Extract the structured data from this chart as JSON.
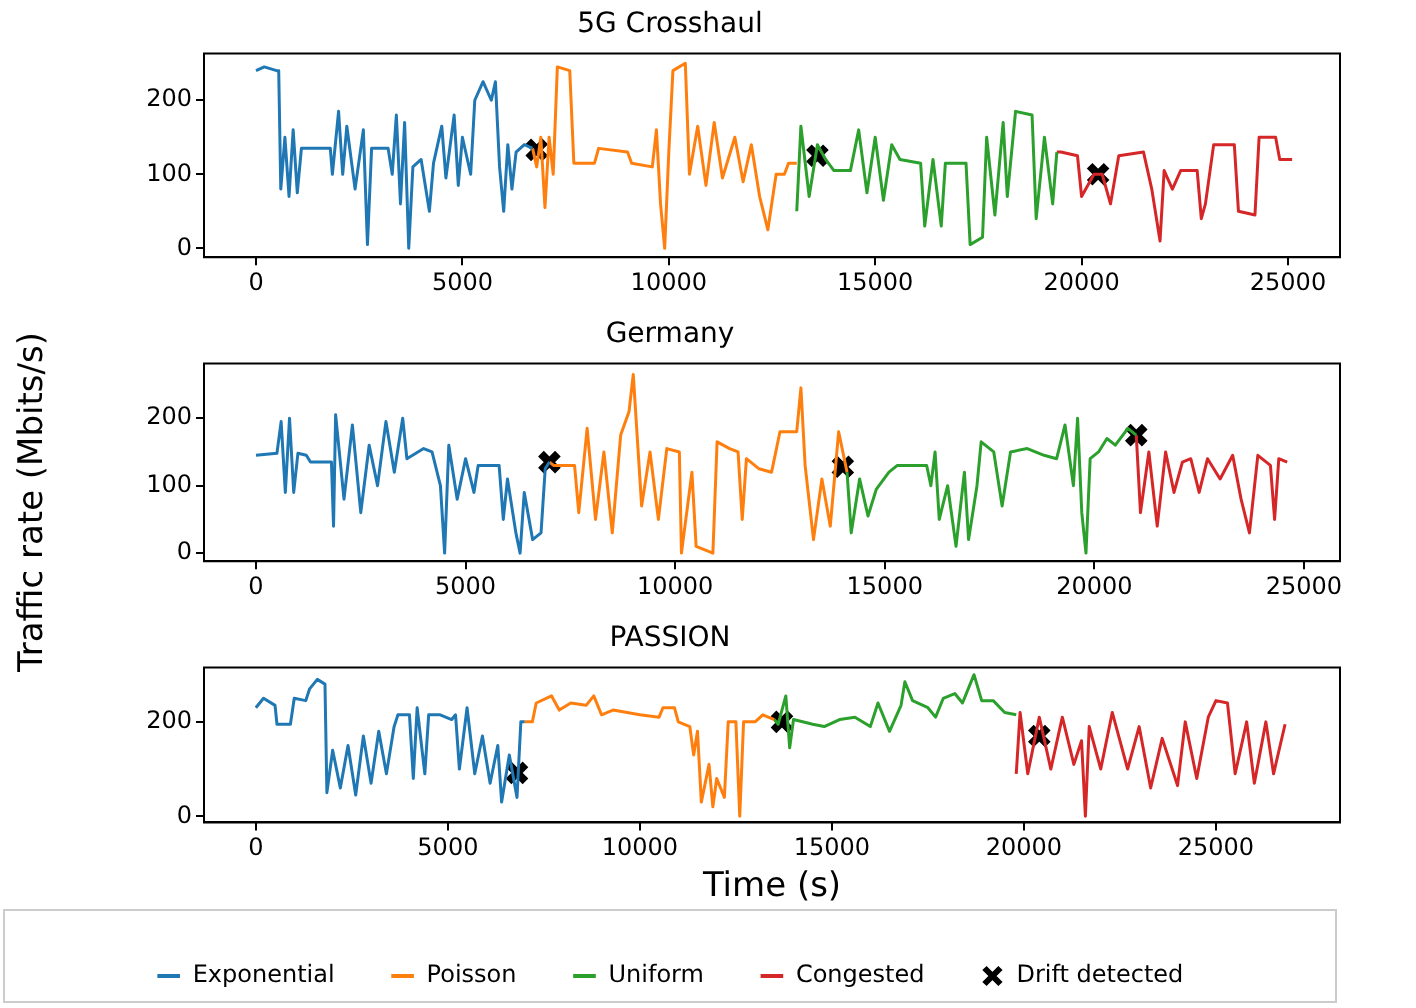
{
  "chart_data": [
    {
      "type": "line",
      "title": "5G Crosshaul",
      "xlim": [
        -1260,
        26260
      ],
      "xticks": [
        0,
        5000,
        10000,
        15000,
        20000,
        25000
      ],
      "ylim": [
        -12,
        263
      ],
      "yticks": [
        0,
        100,
        200
      ],
      "grid": false,
      "legend": false,
      "series": [
        {
          "color": "#1f77b4",
          "x": [
            0,
            200,
            500,
            550,
            600,
            700,
            800,
            900,
            1000,
            1100,
            1800,
            1850,
            2000,
            2100,
            2200,
            2400,
            2600,
            2700,
            2800,
            3200,
            3300,
            3400,
            3500,
            3600,
            3700,
            3800,
            4000,
            4200,
            4300,
            4500,
            4600,
            4800,
            4900,
            5000,
            5200,
            5300,
            5500,
            5700,
            5800,
            5900,
            6000,
            6100,
            6200,
            6300,
            6500,
            6700
          ],
          "values": [
            240,
            245,
            240,
            240,
            80,
            150,
            70,
            160,
            75,
            135,
            135,
            100,
            185,
            100,
            165,
            80,
            160,
            5,
            135,
            135,
            100,
            180,
            60,
            170,
            0,
            110,
            120,
            50,
            115,
            165,
            95,
            180,
            85,
            150,
            100,
            200,
            225,
            200,
            225,
            110,
            50,
            140,
            80,
            130,
            140,
            135
          ]
        },
        {
          "color": "#ff7f0e",
          "x": [
            6700,
            6800,
            6900,
            7000,
            7100,
            7200,
            7300,
            7600,
            7700,
            8200,
            8300,
            9000,
            9100,
            9600,
            9700,
            9800,
            9900,
            10000,
            10100,
            10400,
            10500,
            10700,
            10900,
            11100,
            11300,
            11600,
            11800,
            12000,
            12200,
            12400,
            12600,
            12800,
            12900,
            13100
          ],
          "values": [
            135,
            110,
            150,
            55,
            150,
            100,
            245,
            240,
            115,
            115,
            135,
            130,
            115,
            110,
            160,
            60,
            0,
            130,
            240,
            250,
            100,
            165,
            85,
            170,
            95,
            150,
            90,
            140,
            70,
            25,
            100,
            100,
            115,
            115
          ]
        },
        {
          "color": "#2ca02c",
          "x": [
            13100,
            13200,
            13400,
            13600,
            13800,
            14000,
            14400,
            14600,
            14800,
            15000,
            15200,
            15400,
            15600,
            16100,
            16200,
            16400,
            16600,
            16700,
            17200,
            17300,
            17600,
            17700,
            17900,
            18100,
            18200,
            18400,
            18800,
            18900,
            19100,
            19300,
            19400
          ],
          "values": [
            50,
            165,
            70,
            140,
            120,
            105,
            105,
            160,
            75,
            150,
            65,
            140,
            120,
            115,
            30,
            120,
            30,
            115,
            115,
            5,
            15,
            150,
            45,
            170,
            70,
            185,
            180,
            40,
            150,
            60,
            130
          ]
        },
        {
          "color": "#d62728",
          "x": [
            19400,
            19500,
            19900,
            20000,
            20300,
            20500,
            20700,
            20900,
            21500,
            21700,
            21900,
            22000,
            22200,
            22400,
            22800,
            22900,
            23000,
            23200,
            23700,
            23800,
            24200,
            24300,
            24700,
            24800,
            25100
          ],
          "values": [
            130,
            130,
            125,
            70,
            100,
            100,
            60,
            125,
            130,
            80,
            10,
            105,
            80,
            105,
            105,
            40,
            60,
            140,
            140,
            50,
            45,
            150,
            150,
            120,
            120
          ]
        },
        {
          "type": "scatter",
          "color": "#000000",
          "marker": "cross",
          "x": [
            6800,
            13600,
            20400
          ],
          "values": [
            133,
            125,
            100
          ]
        }
      ]
    },
    {
      "type": "line",
      "title": "Germany",
      "ylabel": "Traffic rate (Mbits/s)",
      "xlim": [
        -1240,
        25860
      ],
      "xticks": [
        0,
        5000,
        10000,
        15000,
        20000,
        25000
      ],
      "ylim": [
        -12,
        281
      ],
      "yticks": [
        0,
        100,
        200
      ],
      "grid": false,
      "legend": false,
      "series": [
        {
          "color": "#1f77b4",
          "x": [
            0,
            500,
            600,
            700,
            800,
            900,
            1000,
            1200,
            1300,
            1800,
            1850,
            1900,
            2100,
            2300,
            2500,
            2700,
            2900,
            3100,
            3300,
            3500,
            3600,
            4000,
            4200,
            4400,
            4500,
            4600,
            4800,
            5000,
            5200,
            5300,
            5600,
            5800,
            5900,
            6000,
            6200,
            6300,
            6400,
            6600,
            6800,
            6900,
            7000
          ],
          "values": [
            145,
            148,
            195,
            90,
            200,
            90,
            148,
            145,
            135,
            135,
            40,
            205,
            80,
            190,
            60,
            160,
            100,
            195,
            120,
            200,
            140,
            155,
            150,
            100,
            0,
            160,
            80,
            140,
            90,
            130,
            130,
            130,
            50,
            110,
            30,
            0,
            90,
            20,
            30,
            125,
            135
          ]
        },
        {
          "color": "#ff7f0e",
          "x": [
            7000,
            7100,
            7600,
            7700,
            7900,
            8100,
            8300,
            8500,
            8700,
            8900,
            9000,
            9200,
            9400,
            9600,
            9800,
            10100,
            10150,
            10400,
            10500,
            10900,
            11000,
            11300,
            11500,
            11600,
            11700,
            12000,
            12300,
            12500,
            12900,
            13000,
            13100,
            13300,
            13500,
            13700,
            13900,
            14100
          ],
          "values": [
            135,
            130,
            130,
            60,
            185,
            50,
            150,
            30,
            175,
            210,
            265,
            70,
            150,
            50,
            155,
            150,
            0,
            120,
            10,
            0,
            165,
            155,
            150,
            50,
            140,
            125,
            120,
            180,
            180,
            245,
            130,
            20,
            110,
            40,
            180,
            120
          ]
        },
        {
          "color": "#2ca02c",
          "x": [
            14100,
            14200,
            14400,
            14600,
            14800,
            15100,
            15300,
            16000,
            16100,
            16200,
            16300,
            16500,
            16700,
            16900,
            17000,
            17200,
            17300,
            17600,
            17800,
            18000,
            18400,
            18800,
            19100,
            19300,
            19500,
            19600,
            19700,
            19800,
            19900,
            20100,
            20300,
            20500,
            20800,
            21000
          ],
          "values": [
            120,
            30,
            110,
            55,
            95,
            120,
            130,
            130,
            100,
            150,
            50,
            100,
            10,
            120,
            20,
            100,
            165,
            150,
            70,
            150,
            155,
            145,
            140,
            190,
            100,
            200,
            60,
            0,
            140,
            150,
            170,
            160,
            185,
            175
          ]
        },
        {
          "color": "#d62728",
          "x": [
            21000,
            21100,
            21300,
            21500,
            21700,
            21900,
            22100,
            22300,
            22500,
            22700,
            23000,
            23300,
            23500,
            23700,
            23900,
            24200,
            24300,
            24400,
            24600
          ],
          "values": [
            175,
            60,
            150,
            40,
            150,
            90,
            135,
            140,
            90,
            140,
            110,
            145,
            80,
            30,
            145,
            130,
            50,
            140,
            135
          ]
        },
        {
          "type": "scatter",
          "color": "#000000",
          "marker": "cross",
          "x": [
            7000,
            14000,
            21000
          ],
          "values": [
            135,
            128,
            175
          ]
        }
      ]
    },
    {
      "type": "line",
      "title": "PASSION",
      "xlabel": "Time (s)",
      "xlim": [
        -1350,
        28230
      ],
      "xticks": [
        0,
        5000,
        10000,
        15000,
        20000,
        25000
      ],
      "ylim": [
        -13,
        315
      ],
      "yticks": [
        0,
        200
      ],
      "grid": false,
      "legend": "bottom",
      "series": [
        {
          "name": "Exponential",
          "color": "#1f77b4",
          "x": [
            0,
            200,
            500,
            550,
            900,
            1000,
            1300,
            1400,
            1600,
            1800,
            1850,
            2000,
            2200,
            2400,
            2600,
            2800,
            3000,
            3200,
            3400,
            3600,
            3700,
            4000,
            4100,
            4200,
            4400,
            4500,
            4800,
            5100,
            5200,
            5300,
            5500,
            5700,
            5900,
            6100,
            6300,
            6400,
            6600,
            6800,
            6900,
            7000
          ],
          "values": [
            230,
            250,
            235,
            195,
            195,
            250,
            245,
            270,
            290,
            280,
            50,
            140,
            60,
            150,
            45,
            170,
            70,
            180,
            90,
            190,
            215,
            215,
            80,
            230,
            90,
            215,
            215,
            205,
            215,
            100,
            230,
            90,
            170,
            70,
            150,
            30,
            130,
            40,
            200,
            200
          ]
        },
        {
          "name": "Poisson",
          "color": "#ff7f0e",
          "x": [
            7000,
            7200,
            7300,
            7700,
            7900,
            8200,
            8600,
            8800,
            9000,
            9300,
            10000,
            10500,
            10600,
            10900,
            11000,
            11300,
            11400,
            11500,
            11600,
            11800,
            11900,
            12000,
            12200,
            12300,
            12500,
            12600,
            12700,
            13000,
            13200,
            13500
          ],
          "values": [
            200,
            200,
            240,
            255,
            225,
            240,
            235,
            255,
            215,
            225,
            215,
            210,
            230,
            230,
            200,
            190,
            130,
            180,
            30,
            110,
            20,
            80,
            40,
            200,
            200,
            0,
            200,
            200,
            215,
            205
          ]
        },
        {
          "name": "Uniform",
          "color": "#2ca02c",
          "x": [
            13500,
            13600,
            13800,
            13900,
            14000,
            14500,
            14800,
            15200,
            15600,
            16000,
            16200,
            16500,
            16800,
            16900,
            17100,
            17500,
            17700,
            17900,
            18200,
            18400,
            18700,
            18900,
            19200,
            19500,
            19800
          ],
          "values": [
            205,
            195,
            255,
            145,
            205,
            195,
            190,
            205,
            210,
            190,
            240,
            180,
            235,
            285,
            245,
            230,
            210,
            250,
            260,
            240,
            300,
            245,
            245,
            220,
            215
          ]
        },
        {
          "name": "Congested",
          "color": "#d62728",
          "x": [
            19800,
            19900,
            20100,
            20400,
            20700,
            21000,
            21300,
            21500,
            21600,
            21700,
            22000,
            22300,
            22700,
            23000,
            23300,
            23600,
            24000,
            24200,
            24500,
            24800,
            25000,
            25300,
            25500,
            25800,
            26000,
            26300,
            26500,
            26800
          ],
          "values": [
            90,
            220,
            90,
            210,
            100,
            210,
            110,
            160,
            0,
            190,
            100,
            220,
            100,
            190,
            60,
            165,
            65,
            200,
            80,
            210,
            245,
            240,
            90,
            200,
            70,
            200,
            90,
            195
          ]
        },
        {
          "type": "scatter",
          "name": "Drift detected",
          "color": "#000000",
          "marker": "cross",
          "x": [
            6800,
            13700,
            20400
          ],
          "values": [
            92,
            200,
            170
          ]
        }
      ]
    }
  ]
}
